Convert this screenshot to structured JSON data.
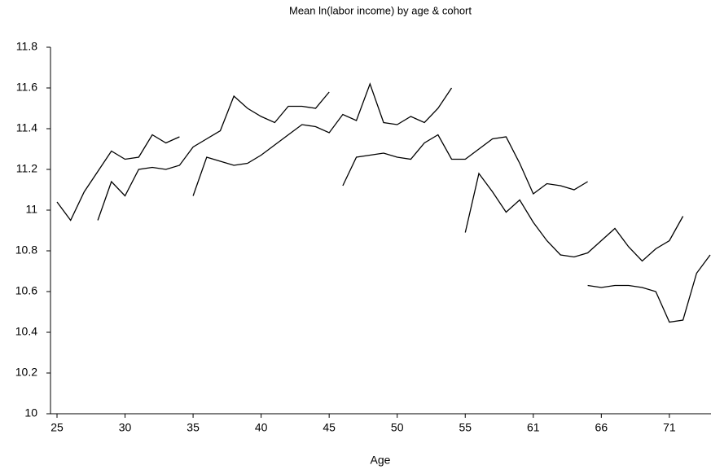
{
  "chart_data": {
    "type": "line",
    "title": "Mean ln(labor income) by age & cohort",
    "x_label": "Age",
    "categories": [
      "25",
      null,
      null,
      null,
      null,
      "30",
      null,
      null,
      null,
      null,
      "35",
      null,
      null,
      null,
      null,
      "40",
      null,
      null,
      null,
      null,
      "45",
      null,
      null,
      null,
      null,
      "50",
      null,
      null,
      null,
      null,
      "55",
      null,
      null,
      null,
      null,
      "61",
      null,
      null,
      null,
      null,
      "66",
      null,
      null,
      null,
      null,
      "71",
      null,
      null,
      null
    ],
    "series": [
      {
        "color": "#000000",
        "values": [
          11.04,
          10.95,
          11.09,
          11.19,
          11.29,
          11.25,
          11.26,
          11.37,
          11.33,
          11.36,
          null,
          null,
          null,
          null,
          null,
          null,
          null,
          null,
          null,
          null,
          null,
          null,
          null,
          null,
          null,
          null,
          null,
          null,
          null,
          null,
          null,
          null,
          null,
          null,
          null,
          null,
          null,
          null,
          null,
          null,
          null,
          null,
          null,
          null,
          null,
          null,
          null,
          null,
          null
        ]
      },
      {
        "color": "#000000",
        "values": [
          null,
          null,
          null,
          10.95,
          11.14,
          11.07,
          11.2,
          11.21,
          11.2,
          11.22,
          11.31,
          11.35,
          11.39,
          11.56,
          11.5,
          11.46,
          11.43,
          11.51,
          11.51,
          11.5,
          11.58,
          null,
          null,
          null,
          null,
          null,
          null,
          null,
          null,
          null,
          null,
          null,
          null,
          null,
          null,
          null,
          null,
          null,
          null,
          null,
          null,
          null,
          null,
          null,
          null,
          null,
          null,
          null,
          null
        ]
      },
      {
        "color": "#000000",
        "values": [
          null,
          null,
          null,
          null,
          null,
          null,
          null,
          null,
          null,
          null,
          11.07,
          11.26,
          11.24,
          11.22,
          11.23,
          11.27,
          11.32,
          11.37,
          11.42,
          11.41,
          11.38,
          11.47,
          11.44,
          11.62,
          11.43,
          11.42,
          11.46,
          11.43,
          11.5,
          11.6,
          null,
          null,
          null,
          null,
          null,
          null,
          null,
          null,
          null,
          null,
          null,
          null,
          null,
          null,
          null,
          null,
          null,
          null,
          null
        ]
      },
      {
        "color": "#000000",
        "values": [
          null,
          null,
          null,
          null,
          null,
          null,
          null,
          null,
          null,
          null,
          null,
          null,
          null,
          null,
          null,
          null,
          null,
          null,
          null,
          null,
          null,
          11.12,
          11.26,
          11.27,
          11.28,
          11.26,
          11.25,
          11.33,
          11.37,
          11.25,
          11.25,
          11.3,
          11.35,
          11.36,
          11.23,
          11.08,
          11.13,
          11.12,
          11.1,
          11.14,
          null,
          null,
          null,
          null,
          null,
          null,
          null,
          null,
          null
        ]
      },
      {
        "color": "#000000",
        "values": [
          null,
          null,
          null,
          null,
          null,
          null,
          null,
          null,
          null,
          null,
          null,
          null,
          null,
          null,
          null,
          null,
          null,
          null,
          null,
          null,
          null,
          null,
          null,
          null,
          null,
          null,
          null,
          null,
          null,
          null,
          10.89,
          11.18,
          11.09,
          10.99,
          11.05,
          10.94,
          10.85,
          10.78,
          10.77,
          10.79,
          10.85,
          10.91,
          10.82,
          10.75,
          10.81,
          10.85,
          10.97,
          null,
          null
        ]
      },
      {
        "color": "#000000",
        "values": [
          null,
          null,
          null,
          null,
          null,
          null,
          null,
          null,
          null,
          null,
          null,
          null,
          null,
          null,
          null,
          null,
          null,
          null,
          null,
          null,
          null,
          null,
          null,
          null,
          null,
          null,
          null,
          null,
          null,
          null,
          null,
          null,
          null,
          null,
          null,
          null,
          null,
          null,
          null,
          10.63,
          10.62,
          10.63,
          10.63,
          10.62,
          10.6,
          10.45,
          10.46,
          10.69,
          10.78
        ]
      }
    ],
    "ylim": [
      10,
      11.8
    ],
    "yticks": [
      10,
      10.2,
      10.4,
      10.6,
      10.8,
      11,
      11.2,
      11.4,
      11.6,
      11.8
    ],
    "grid": false
  }
}
